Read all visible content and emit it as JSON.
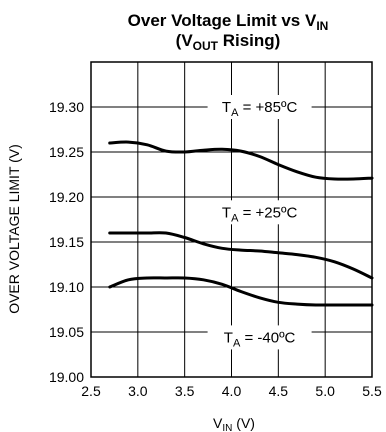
{
  "chart_data": {
    "type": "line",
    "title_line1": "Over Voltage Limit vs V",
    "title_line1_sub": "IN",
    "title_line2_open": "(V",
    "title_line2_sub": "OUT",
    "title_line2_rest": " Rising)",
    "xlabel": "V",
    "xlabel_sub": "IN",
    "xlabel_unit": " (V)",
    "ylabel": "OVER VOLTAGE LIMIT (V)",
    "xlim": [
      2.5,
      5.5
    ],
    "ylim": [
      19.0,
      19.35
    ],
    "x_ticks": [
      "2.5",
      "3.0",
      "3.5",
      "4.0",
      "4.5",
      "5.0",
      "5.5"
    ],
    "y_ticks": [
      "19.00",
      "19.05",
      "19.10",
      "19.15",
      "19.20",
      "19.25",
      "19.30"
    ],
    "grid": true,
    "series": [
      {
        "name": "T_A = +85°C",
        "label_parts": [
          "T",
          "A",
          " = +85ºC"
        ],
        "x": [
          2.7,
          2.9,
          3.1,
          3.3,
          3.5,
          3.7,
          3.9,
          4.1,
          4.3,
          4.5,
          4.7,
          4.9,
          5.1,
          5.3,
          5.5
        ],
        "y": [
          19.26,
          19.261,
          19.258,
          19.251,
          19.25,
          19.252,
          19.253,
          19.251,
          19.245,
          19.236,
          19.228,
          19.222,
          19.22,
          19.22,
          19.221
        ]
      },
      {
        "name": "T_A = +25°C",
        "label_parts": [
          "T",
          "A",
          " = +25ºC"
        ],
        "x": [
          2.7,
          2.9,
          3.1,
          3.3,
          3.5,
          3.7,
          3.9,
          4.1,
          4.3,
          4.5,
          4.7,
          4.9,
          5.1,
          5.3,
          5.5
        ],
        "y": [
          19.16,
          19.16,
          19.16,
          19.16,
          19.155,
          19.148,
          19.143,
          19.141,
          19.14,
          19.138,
          19.136,
          19.133,
          19.128,
          19.12,
          19.11
        ]
      },
      {
        "name": "T_A = -40°C",
        "label_parts": [
          "T",
          "A",
          " = -40ºC"
        ],
        "x": [
          2.7,
          2.9,
          3.1,
          3.3,
          3.5,
          3.7,
          3.9,
          4.1,
          4.3,
          4.5,
          4.7,
          4.9,
          5.1,
          5.3,
          5.5
        ],
        "y": [
          19.1,
          19.108,
          19.11,
          19.11,
          19.11,
          19.108,
          19.103,
          19.095,
          19.088,
          19.083,
          19.081,
          19.08,
          19.08,
          19.08,
          19.08
        ]
      }
    ]
  }
}
